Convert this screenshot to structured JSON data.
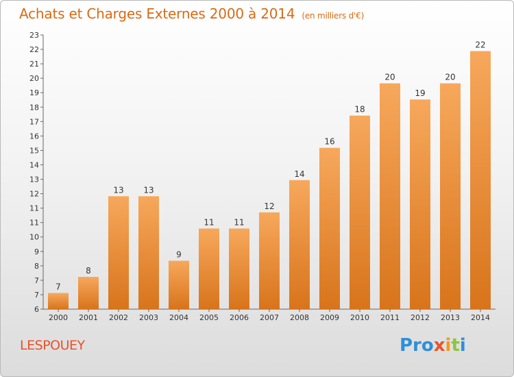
{
  "header": {
    "title": "Achats et Charges Externes 2000 à 2014",
    "subtitle": "(en milliers d'€)"
  },
  "footer": {
    "commune": "LESPOUEY",
    "logo": [
      "Pro",
      "x",
      "i",
      "t",
      "i"
    ]
  },
  "colors": {
    "bar_top": "#f7a85c",
    "bar_bottom": "#d8741b",
    "title": "#d96a14",
    "commune": "#e8522a"
  },
  "chart_data": {
    "type": "bar",
    "title": "Achats et Charges Externes 2000 à 2014",
    "subtitle": "(en milliers d'€)",
    "categories": [
      "2000",
      "2001",
      "2002",
      "2003",
      "2004",
      "2005",
      "2006",
      "2007",
      "2008",
      "2009",
      "2010",
      "2011",
      "2012",
      "2013",
      "2014"
    ],
    "values": [
      7,
      8,
      13,
      13,
      9,
      11,
      11,
      12,
      14,
      16,
      18,
      20,
      19,
      20,
      22
    ],
    "ylim": [
      6,
      23
    ],
    "yticks": [
      "6",
      "7",
      "7",
      "8",
      "9",
      "10",
      "11",
      "11",
      "12",
      "13",
      "14",
      "15",
      "16",
      "17",
      "18",
      "19",
      "20",
      "21",
      "22",
      "23"
    ],
    "grid": false,
    "data_labels": true
  }
}
